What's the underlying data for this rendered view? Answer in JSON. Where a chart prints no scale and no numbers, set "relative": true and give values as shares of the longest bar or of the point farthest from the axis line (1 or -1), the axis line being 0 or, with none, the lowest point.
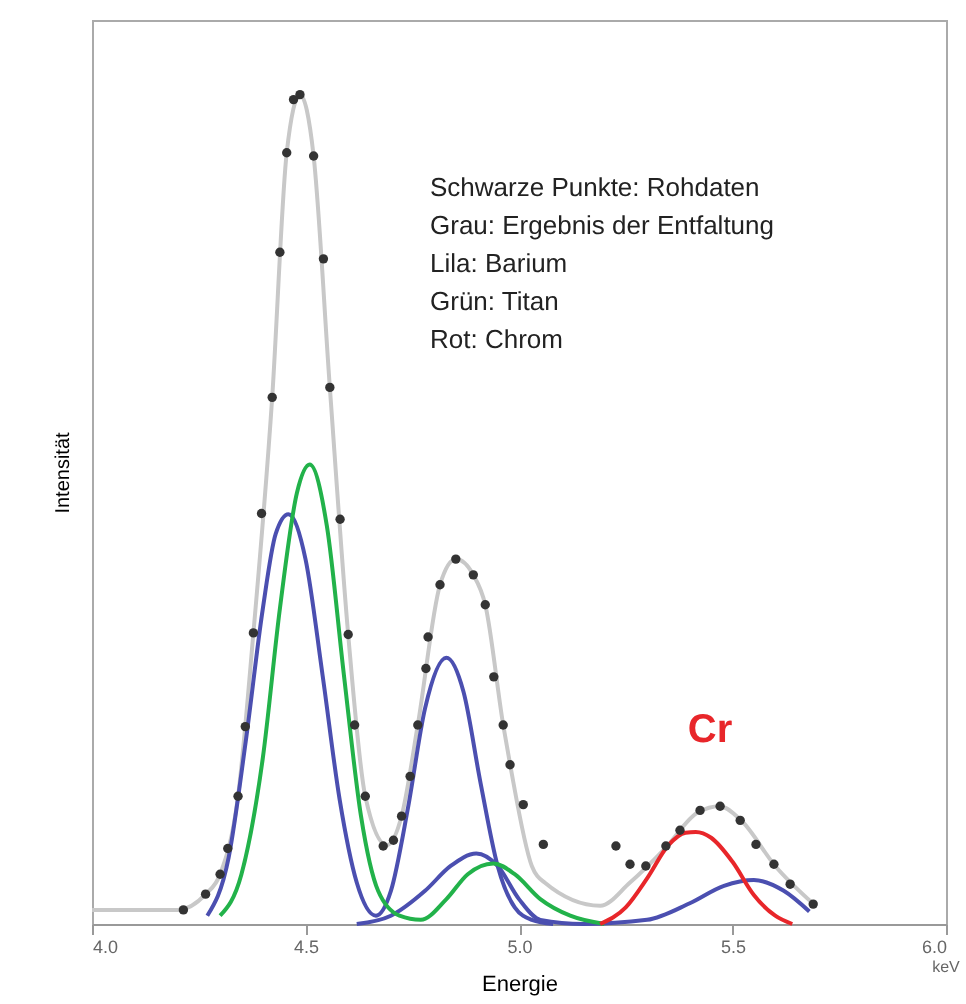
{
  "chart_data": {
    "type": "line",
    "xlabel": "Energie",
    "ylabel": "Intensität",
    "relative": true,
    "grid": false,
    "xlim": [
      4,
      6
    ],
    "xticks": [
      {
        "value": 4,
        "label": "4.0"
      },
      {
        "value": 4.5,
        "label": "4.5"
      },
      {
        "value": 5,
        "label": "5.0"
      },
      {
        "value": 5.5,
        "label": "5.5"
      },
      {
        "value": 6,
        "label": "6.0"
      }
    ],
    "annotations": [
      "Schwarze Punkte: Rohdaten",
      "Grau: Ergebnis der Entfaltung",
      "Lila: Barium",
      "Grün: Titan",
      "Rot: Chrom",
      "Cr",
      "keV"
    ],
    "series": [
      {
        "type": "line",
        "color": "#c8c8c8",
        "marker": "none",
        "x": [
          4.0,
          4.2,
          4.266,
          4.3,
          4.342,
          4.378,
          4.422,
          4.456,
          4.487,
          4.519,
          4.557,
          4.6,
          4.64,
          4.69,
          4.725,
          4.763,
          4.815,
          4.852,
          4.893,
          4.921,
          4.963,
          4.98,
          5.03,
          5.06,
          5.19,
          5.26,
          5.34,
          5.42,
          5.47,
          5.52,
          5.6,
          5.69
        ],
        "values": [
          0.017,
          0.017,
          0.036,
          0.06,
          0.154,
          0.351,
          0.635,
          0.93,
          1.0,
          0.926,
          0.647,
          0.349,
          0.154,
          0.095,
          0.13,
          0.24,
          0.409,
          0.44,
          0.421,
          0.385,
          0.24,
          0.19,
          0.07,
          0.05,
          0.022,
          0.05,
          0.09,
          0.135,
          0.142,
          0.125,
          0.07,
          0.024
        ]
      },
      {
        "type": "line",
        "color": "#4b4fb0",
        "marker": "none",
        "x": [
          4.27,
          4.32,
          4.36,
          4.4,
          4.43,
          4.46,
          4.5,
          4.54,
          4.58,
          4.62,
          4.665,
          4.7,
          4.74,
          4.78,
          4.83,
          4.87,
          4.91,
          4.95,
          4.99,
          5.03,
          5.08
        ],
        "values": [
          0.01,
          0.08,
          0.22,
          0.38,
          0.47,
          0.494,
          0.44,
          0.3,
          0.15,
          0.05,
          0.01,
          0.04,
          0.14,
          0.26,
          0.321,
          0.28,
          0.17,
          0.07,
          0.02,
          0.005,
          0.0
        ]
      },
      {
        "type": "line",
        "color": "#4b4fb0",
        "marker": "none",
        "x": [
          4.62,
          4.7,
          4.78,
          4.84,
          4.9,
          4.95,
          5.0,
          5.05,
          5.15,
          5.3,
          5.4,
          5.48,
          5.55,
          5.62,
          5.68
        ],
        "values": [
          0.0,
          0.01,
          0.04,
          0.07,
          0.085,
          0.07,
          0.03,
          0.005,
          0.0,
          0.005,
          0.025,
          0.046,
          0.053,
          0.04,
          0.015
        ]
      },
      {
        "type": "line",
        "color": "#22b24a",
        "marker": "none",
        "x": [
          4.3,
          4.35,
          4.4,
          4.44,
          4.48,
          4.51,
          4.55,
          4.59,
          4.63,
          4.67,
          4.72,
          4.77,
          4.83,
          4.88,
          4.94,
          4.99,
          5.05,
          5.12,
          5.2
        ],
        "values": [
          0.01,
          0.06,
          0.2,
          0.38,
          0.52,
          0.554,
          0.48,
          0.3,
          0.13,
          0.04,
          0.01,
          0.005,
          0.03,
          0.06,
          0.073,
          0.06,
          0.03,
          0.01,
          0.0
        ]
      },
      {
        "type": "line",
        "color": "#e8262a",
        "marker": "none",
        "x": [
          5.19,
          5.25,
          5.3,
          5.35,
          5.39,
          5.414,
          5.45,
          5.5,
          5.55,
          5.6,
          5.64
        ],
        "values": [
          0.0,
          0.02,
          0.055,
          0.095,
          0.11,
          0.111,
          0.104,
          0.075,
          0.035,
          0.01,
          0.0
        ]
      },
      {
        "type": "scatter",
        "color": "#333333",
        "marker": "circle",
        "x": [
          4.214,
          4.266,
          4.3,
          4.318,
          4.342,
          4.359,
          4.378,
          4.397,
          4.422,
          4.44,
          4.456,
          4.472,
          4.487,
          4.519,
          4.542,
          4.557,
          4.581,
          4.6,
          4.615,
          4.64,
          4.682,
          4.706,
          4.725,
          4.745,
          4.763,
          4.782,
          4.787,
          4.815,
          4.852,
          4.893,
          4.921,
          4.941,
          4.963,
          4.979,
          5.01,
          5.057,
          5.227,
          5.26,
          5.297,
          5.344,
          5.377,
          5.424,
          5.471,
          5.518,
          5.555,
          5.597,
          5.635,
          5.689
        ],
        "values": [
          0.017,
          0.036,
          0.06,
          0.091,
          0.154,
          0.238,
          0.351,
          0.495,
          0.635,
          0.81,
          0.93,
          0.994,
          1.0,
          0.926,
          0.802,
          0.647,
          0.488,
          0.349,
          0.24,
          0.154,
          0.094,
          0.101,
          0.13,
          0.178,
          0.24,
          0.308,
          0.346,
          0.409,
          0.44,
          0.421,
          0.385,
          0.298,
          0.24,
          0.192,
          0.144,
          0.096,
          0.094,
          0.072,
          0.07,
          0.094,
          0.113,
          0.137,
          0.142,
          0.125,
          0.096,
          0.072,
          0.048,
          0.024
        ]
      }
    ]
  }
}
